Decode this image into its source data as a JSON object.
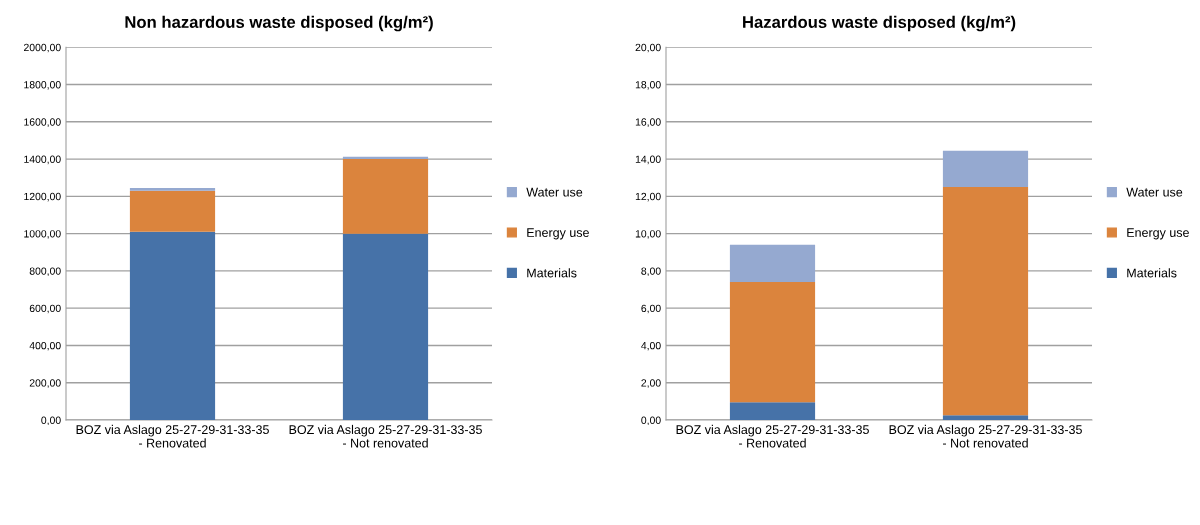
{
  "chart_data": [
    {
      "type": "bar",
      "title": "Non hazardous waste disposed (kg/m²)",
      "stacked": true,
      "grid": "y",
      "legend": "right",
      "categories": [
        "BOZ via Aslago 25-27-29-31-33-35 - Renovated",
        "BOZ via Aslago 25-27-29-31-33-35 - Not renovated"
      ],
      "series": [
        {
          "name": "Materials",
          "color": "#4672a8",
          "values": [
            1010,
            1000
          ]
        },
        {
          "name": "Energy use",
          "color": "#db843d",
          "values": [
            220,
            400
          ]
        },
        {
          "name": "Water use",
          "color": "#95a9d0",
          "values": [
            15,
            12
          ]
        }
      ],
      "ylim": [
        0,
        2000
      ],
      "yticks": [
        {
          "value": 0,
          "label": "0,00"
        },
        {
          "value": 200,
          "label": "200,00"
        },
        {
          "value": 400,
          "label": "400,00"
        },
        {
          "value": 600,
          "label": "600,00"
        },
        {
          "value": 800,
          "label": "800,00"
        },
        {
          "value": 1000,
          "label": "1000,00"
        },
        {
          "value": 1200,
          "label": "1200,00"
        },
        {
          "value": 1400,
          "label": "1400,00"
        },
        {
          "value": 1600,
          "label": "1600,00"
        },
        {
          "value": 1800,
          "label": "1800,00"
        },
        {
          "value": 2000,
          "label": "2000,00"
        }
      ]
    },
    {
      "type": "bar",
      "title": "Hazardous waste disposed (kg/m²)",
      "stacked": true,
      "grid": "y",
      "legend": "right",
      "categories": [
        "BOZ via Aslago 25-27-29-31-33-35 - Renovated",
        "BOZ via Aslago 25-27-29-31-33-35 - Not renovated"
      ],
      "series": [
        {
          "name": "Materials",
          "color": "#4672a8",
          "values": [
            0.95,
            0.25
          ]
        },
        {
          "name": "Energy use",
          "color": "#db843d",
          "values": [
            6.45,
            12.25
          ]
        },
        {
          "name": "Water use",
          "color": "#95a9d0",
          "values": [
            2.0,
            1.95
          ]
        }
      ],
      "ylim": [
        0,
        20
      ],
      "yticks": [
        {
          "value": 0,
          "label": "0,00"
        },
        {
          "value": 2,
          "label": "2,00"
        },
        {
          "value": 4,
          "label": "4,00"
        },
        {
          "value": 6,
          "label": "6,00"
        },
        {
          "value": 8,
          "label": "8,00"
        },
        {
          "value": 10,
          "label": "10,00"
        },
        {
          "value": 12,
          "label": "12,00"
        },
        {
          "value": 14,
          "label": "14,00"
        },
        {
          "value": 16,
          "label": "16,00"
        },
        {
          "value": 18,
          "label": "18,00"
        },
        {
          "value": 20,
          "label": "20,00"
        }
      ]
    }
  ]
}
